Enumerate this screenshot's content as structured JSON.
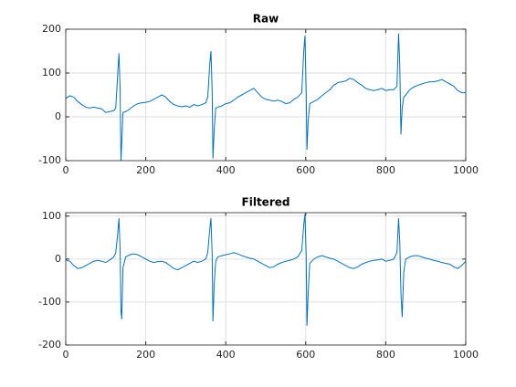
{
  "chart_data": [
    {
      "type": "line",
      "title": "Raw",
      "x": [
        0,
        10,
        20,
        30,
        40,
        50,
        60,
        70,
        80,
        90,
        100,
        110,
        120,
        125,
        130,
        133,
        136,
        138,
        140,
        143,
        150,
        160,
        170,
        180,
        190,
        200,
        210,
        220,
        230,
        240,
        250,
        260,
        270,
        280,
        290,
        300,
        310,
        320,
        330,
        340,
        350,
        355,
        360,
        363,
        366,
        368,
        371,
        375,
        380,
        390,
        400,
        410,
        420,
        430,
        440,
        450,
        460,
        470,
        480,
        490,
        500,
        510,
        520,
        530,
        540,
        550,
        560,
        570,
        580,
        590,
        595,
        598,
        601,
        603,
        606,
        610,
        620,
        630,
        640,
        650,
        660,
        670,
        680,
        690,
        700,
        710,
        720,
        730,
        740,
        750,
        760,
        770,
        780,
        790,
        800,
        810,
        820,
        828,
        832,
        835,
        838,
        841,
        845,
        850,
        860,
        870,
        880,
        890,
        900,
        910,
        920,
        930,
        940,
        950,
        960,
        970,
        980,
        990,
        1000
      ],
      "series": [
        {
          "color": "#0072bd",
          "values": [
            42,
            48,
            45,
            35,
            28,
            22,
            20,
            22,
            20,
            18,
            10,
            12,
            14,
            20,
            100,
            145,
            60,
            -100,
            -60,
            10,
            12,
            18,
            25,
            30,
            32,
            33,
            35,
            40,
            45,
            50,
            45,
            35,
            28,
            25,
            23,
            25,
            22,
            28,
            25,
            28,
            32,
            45,
            120,
            150,
            60,
            -95,
            -30,
            20,
            22,
            25,
            30,
            32,
            38,
            45,
            50,
            55,
            60,
            65,
            55,
            45,
            40,
            38,
            36,
            38,
            35,
            30,
            32,
            40,
            45,
            55,
            150,
            185,
            60,
            -75,
            -10,
            30,
            35,
            40,
            48,
            55,
            62,
            72,
            78,
            80,
            82,
            88,
            85,
            78,
            72,
            65,
            62,
            60,
            62,
            65,
            60,
            62,
            62,
            70,
            190,
            120,
            -40,
            20,
            45,
            50,
            62,
            68,
            72,
            75,
            78,
            80,
            80,
            82,
            85,
            80,
            75,
            70,
            60,
            55,
            55
          ]
        }
      ],
      "xlim": [
        0,
        1000
      ],
      "xticks": [
        0,
        200,
        400,
        600,
        800,
        1000
      ],
      "ylim": [
        -100,
        200
      ],
      "yticks": [
        -100,
        0,
        100,
        200
      ],
      "grid": true
    },
    {
      "type": "line",
      "title": "Filtered",
      "x": [
        0,
        10,
        20,
        30,
        40,
        50,
        60,
        70,
        80,
        90,
        100,
        110,
        120,
        125,
        130,
        133,
        136,
        138,
        140,
        143,
        150,
        160,
        170,
        180,
        190,
        200,
        210,
        220,
        230,
        240,
        250,
        260,
        270,
        280,
        290,
        300,
        310,
        320,
        330,
        340,
        350,
        355,
        360,
        363,
        366,
        368,
        371,
        375,
        380,
        390,
        400,
        410,
        420,
        430,
        440,
        450,
        460,
        470,
        480,
        490,
        500,
        510,
        520,
        530,
        540,
        550,
        560,
        570,
        580,
        590,
        595,
        598,
        601,
        603,
        606,
        610,
        620,
        630,
        640,
        650,
        660,
        670,
        680,
        690,
        700,
        710,
        720,
        730,
        740,
        750,
        760,
        770,
        780,
        790,
        800,
        810,
        820,
        828,
        832,
        835,
        838,
        841,
        845,
        850,
        860,
        870,
        880,
        890,
        900,
        910,
        920,
        930,
        940,
        950,
        960,
        970,
        980,
        990,
        1000
      ],
      "series": [
        {
          "color": "#0072bd",
          "values": [
            -2,
            -5,
            -15,
            -22,
            -20,
            -15,
            -10,
            -5,
            -3,
            -5,
            -8,
            -2,
            5,
            15,
            60,
            95,
            20,
            -120,
            -140,
            -20,
            5,
            10,
            12,
            10,
            5,
            0,
            -5,
            -8,
            -6,
            -5,
            -8,
            -15,
            -22,
            -25,
            -20,
            -15,
            -10,
            -5,
            -8,
            -5,
            0,
            15,
            70,
            95,
            10,
            -145,
            -60,
            -5,
            5,
            8,
            10,
            12,
            15,
            12,
            8,
            5,
            2,
            0,
            -5,
            -10,
            -15,
            -20,
            -18,
            -12,
            -8,
            -5,
            -3,
            0,
            5,
            20,
            80,
            105,
            10,
            -155,
            -80,
            -10,
            0,
            5,
            8,
            5,
            2,
            0,
            -5,
            -10,
            -15,
            -20,
            -22,
            -18,
            -12,
            -8,
            -5,
            -3,
            -2,
            0,
            -5,
            -3,
            0,
            15,
            95,
            40,
            -80,
            -135,
            -30,
            0,
            5,
            8,
            8,
            5,
            2,
            0,
            -3,
            -5,
            -8,
            -10,
            -12,
            -18,
            -22,
            -15,
            -5
          ]
        }
      ],
      "xlim": [
        0,
        1000
      ],
      "xticks": [
        0,
        200,
        400,
        600,
        800,
        1000
      ],
      "ylim": [
        -200,
        108
      ],
      "yticks": [
        -200,
        -100,
        0,
        100
      ],
      "grid": true
    }
  ]
}
